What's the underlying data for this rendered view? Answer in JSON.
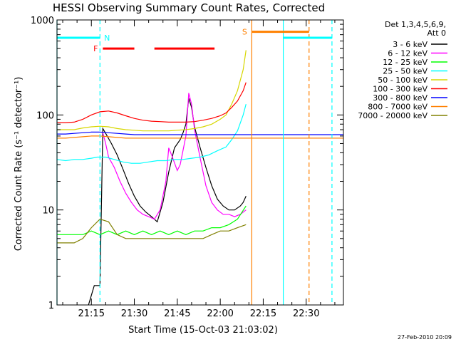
{
  "chart_data": {
    "type": "line",
    "title": "HESSI Observing Summary Count Rates, Corrected",
    "xlabel": "Start Time (15-Oct-03 21:03:02)",
    "ylabel": "Corrected Count Rate (s⁻¹ detector⁻¹)",
    "x_scale": "time",
    "x_range": [
      "21:03",
      "22:43"
    ],
    "x_ticks": [
      "21:15",
      "21:30",
      "21:45",
      "22:00",
      "22:15",
      "22:30"
    ],
    "y_scale": "log",
    "ylim": [
      1,
      1000
    ],
    "y_ticks": [
      "1",
      "10",
      "100",
      "1000"
    ],
    "legend": {
      "header_lines": [
        "Det 1,3,4,5,6,9,",
        "Att 0"
      ],
      "placement": "outside-right"
    },
    "series": [
      {
        "name": "3 - 6 keV",
        "color": "#000000",
        "points": [
          [
            "21:14",
            1.0
          ],
          [
            "21:16",
            1.6
          ],
          [
            "21:18",
            1.6
          ],
          [
            "21:19",
            72
          ],
          [
            "21:20",
            64
          ],
          [
            "21:22",
            50
          ],
          [
            "21:24",
            38
          ],
          [
            "21:26",
            27
          ],
          [
            "21:28",
            19
          ],
          [
            "21:30",
            14
          ],
          [
            "21:32",
            11
          ],
          [
            "21:34",
            9.5
          ],
          [
            "21:36",
            8.5
          ],
          [
            "21:38",
            7.5
          ],
          [
            "21:40",
            12
          ],
          [
            "21:42",
            25
          ],
          [
            "21:44",
            45
          ],
          [
            "21:46",
            55
          ],
          [
            "21:47",
            65
          ],
          [
            "21:48",
            80
          ],
          [
            "21:49",
            150
          ],
          [
            "21:50",
            120
          ],
          [
            "21:51",
            75
          ],
          [
            "21:53",
            45
          ],
          [
            "21:55",
            28
          ],
          [
            "21:57",
            18
          ],
          [
            "21:59",
            13
          ],
          [
            "22:01",
            11
          ],
          [
            "22:03",
            10
          ],
          [
            "22:05",
            10
          ],
          [
            "22:07",
            11
          ],
          [
            "22:08",
            12
          ],
          [
            "22:09",
            14
          ]
        ]
      },
      {
        "name": "6 - 12 keV",
        "color": "#ff00ff",
        "points": [
          [
            "21:19",
            65
          ],
          [
            "21:20",
            50
          ],
          [
            "21:21",
            36
          ],
          [
            "21:23",
            28
          ],
          [
            "21:25",
            20
          ],
          [
            "21:27",
            15
          ],
          [
            "21:29",
            12
          ],
          [
            "21:31",
            10
          ],
          [
            "21:33",
            9
          ],
          [
            "21:35",
            8.5
          ],
          [
            "21:37",
            8
          ],
          [
            "21:39",
            10
          ],
          [
            "21:41",
            20
          ],
          [
            "21:42",
            45
          ],
          [
            "21:43",
            38
          ],
          [
            "21:45",
            26
          ],
          [
            "21:46",
            30
          ],
          [
            "21:48",
            60
          ],
          [
            "21:49",
            170
          ],
          [
            "21:50",
            130
          ],
          [
            "21:51",
            70
          ],
          [
            "21:53",
            35
          ],
          [
            "21:55",
            18
          ],
          [
            "21:57",
            12
          ],
          [
            "21:59",
            10
          ],
          [
            "22:01",
            9
          ],
          [
            "22:03",
            9
          ],
          [
            "22:05",
            8.5
          ],
          [
            "22:07",
            9
          ],
          [
            "22:09",
            10
          ]
        ]
      },
      {
        "name": "12 - 25 keV",
        "color": "#00ff00",
        "points": [
          [
            "21:03",
            5.5
          ],
          [
            "21:06",
            5.5
          ],
          [
            "21:09",
            5.5
          ],
          [
            "21:12",
            5.5
          ],
          [
            "21:15",
            6.0
          ],
          [
            "21:18",
            5.5
          ],
          [
            "21:21",
            6.0
          ],
          [
            "21:24",
            5.5
          ],
          [
            "21:27",
            6.0
          ],
          [
            "21:30",
            5.5
          ],
          [
            "21:33",
            6.0
          ],
          [
            "21:36",
            5.5
          ],
          [
            "21:39",
            6.0
          ],
          [
            "21:42",
            5.5
          ],
          [
            "21:45",
            6.0
          ],
          [
            "21:48",
            5.5
          ],
          [
            "21:51",
            6.0
          ],
          [
            "21:54",
            6.0
          ],
          [
            "21:57",
            6.5
          ],
          [
            "22:00",
            6.5
          ],
          [
            "22:03",
            7.0
          ],
          [
            "22:06",
            8.0
          ],
          [
            "22:09",
            11
          ]
        ]
      },
      {
        "name": "25 - 50 keV",
        "color": "#00ffff",
        "points": [
          [
            "21:03",
            34
          ],
          [
            "21:06",
            33
          ],
          [
            "21:09",
            34
          ],
          [
            "21:12",
            34
          ],
          [
            "21:15",
            35
          ],
          [
            "21:17",
            36
          ],
          [
            "21:20",
            36
          ],
          [
            "21:23",
            34
          ],
          [
            "21:26",
            32
          ],
          [
            "21:29",
            31
          ],
          [
            "21:32",
            31
          ],
          [
            "21:35",
            32
          ],
          [
            "21:38",
            33
          ],
          [
            "21:41",
            33
          ],
          [
            "21:44",
            34
          ],
          [
            "21:47",
            34
          ],
          [
            "21:50",
            35
          ],
          [
            "21:53",
            36
          ],
          [
            "21:56",
            38
          ],
          [
            "21:59",
            42
          ],
          [
            "22:02",
            46
          ],
          [
            "22:04",
            55
          ],
          [
            "22:06",
            68
          ],
          [
            "22:08",
            100
          ],
          [
            "22:09",
            130
          ]
        ]
      },
      {
        "name": "50 - 100 keV",
        "color": "#d7d700",
        "points": [
          [
            "21:03",
            70
          ],
          [
            "21:06",
            70
          ],
          [
            "21:09",
            70
          ],
          [
            "21:12",
            73
          ],
          [
            "21:15",
            75
          ],
          [
            "21:18",
            76
          ],
          [
            "21:21",
            75
          ],
          [
            "21:24",
            72
          ],
          [
            "21:27",
            70
          ],
          [
            "21:30",
            69
          ],
          [
            "21:33",
            68
          ],
          [
            "21:36",
            68
          ],
          [
            "21:39",
            68
          ],
          [
            "21:42",
            68
          ],
          [
            "21:45",
            69
          ],
          [
            "21:48",
            70
          ],
          [
            "21:51",
            72
          ],
          [
            "21:54",
            75
          ],
          [
            "21:57",
            80
          ],
          [
            "22:00",
            90
          ],
          [
            "22:02",
            100
          ],
          [
            "22:04",
            130
          ],
          [
            "22:06",
            180
          ],
          [
            "22:08",
            300
          ],
          [
            "22:09",
            480
          ]
        ]
      },
      {
        "name": "100 - 300 keV",
        "color": "#ff0000",
        "points": [
          [
            "21:03",
            83
          ],
          [
            "21:06",
            83
          ],
          [
            "21:09",
            84
          ],
          [
            "21:12",
            90
          ],
          [
            "21:15",
            100
          ],
          [
            "21:18",
            108
          ],
          [
            "21:21",
            110
          ],
          [
            "21:24",
            105
          ],
          [
            "21:27",
            98
          ],
          [
            "21:30",
            92
          ],
          [
            "21:33",
            88
          ],
          [
            "21:36",
            86
          ],
          [
            "21:39",
            85
          ],
          [
            "21:42",
            84
          ],
          [
            "21:45",
            84
          ],
          [
            "21:48",
            84
          ],
          [
            "21:51",
            85
          ],
          [
            "21:54",
            88
          ],
          [
            "21:57",
            92
          ],
          [
            "22:00",
            98
          ],
          [
            "22:02",
            105
          ],
          [
            "22:04",
            120
          ],
          [
            "22:06",
            140
          ],
          [
            "22:08",
            180
          ],
          [
            "22:09",
            220
          ]
        ]
      },
      {
        "name": "300 - 800 keV",
        "color": "#0000ff",
        "points": [
          [
            "21:03",
            63
          ],
          [
            "21:06",
            63
          ],
          [
            "21:09",
            64
          ],
          [
            "21:12",
            65
          ],
          [
            "21:15",
            66
          ],
          [
            "21:18",
            66
          ],
          [
            "21:21",
            65
          ],
          [
            "21:24",
            64
          ],
          [
            "21:27",
            63
          ],
          [
            "21:30",
            62
          ],
          [
            "21:33",
            62
          ],
          [
            "21:36",
            62
          ],
          [
            "21:39",
            62
          ],
          [
            "21:42",
            62
          ],
          [
            "21:45",
            62
          ],
          [
            "21:48",
            62
          ],
          [
            "21:51",
            62
          ],
          [
            "21:54",
            62
          ],
          [
            "21:57",
            62
          ],
          [
            "22:00",
            62
          ],
          [
            "22:03",
            62
          ],
          [
            "22:06",
            62
          ],
          [
            "22:09",
            62
          ],
          [
            "22:43",
            62
          ]
        ]
      },
      {
        "name": "800 - 7000 keV",
        "color": "#ff8000",
        "points": [
          [
            "21:03",
            57
          ],
          [
            "21:06",
            57
          ],
          [
            "21:09",
            58
          ],
          [
            "21:12",
            59
          ],
          [
            "21:15",
            60
          ],
          [
            "21:18",
            60
          ],
          [
            "21:21",
            59
          ],
          [
            "21:24",
            58
          ],
          [
            "21:27",
            57
          ],
          [
            "21:30",
            57
          ],
          [
            "21:33",
            57
          ],
          [
            "21:36",
            57
          ],
          [
            "21:39",
            57
          ],
          [
            "21:42",
            57
          ],
          [
            "21:45",
            57
          ],
          [
            "21:48",
            57
          ],
          [
            "21:51",
            57
          ],
          [
            "21:54",
            57
          ],
          [
            "21:57",
            57
          ],
          [
            "22:00",
            57
          ],
          [
            "22:03",
            57
          ],
          [
            "22:06",
            57
          ],
          [
            "22:09",
            57
          ],
          [
            "22:43",
            57
          ]
        ]
      },
      {
        "name": "7000 - 20000 keV",
        "color": "#808000",
        "points": [
          [
            "21:03",
            4.5
          ],
          [
            "21:06",
            4.5
          ],
          [
            "21:09",
            4.5
          ],
          [
            "21:12",
            5.0
          ],
          [
            "21:15",
            6.5
          ],
          [
            "21:18",
            8.0
          ],
          [
            "21:21",
            7.5
          ],
          [
            "21:24",
            5.5
          ],
          [
            "21:27",
            5.0
          ],
          [
            "21:30",
            5.0
          ],
          [
            "21:33",
            5.0
          ],
          [
            "21:36",
            5.0
          ],
          [
            "21:39",
            5.0
          ],
          [
            "21:42",
            5.0
          ],
          [
            "21:45",
            5.0
          ],
          [
            "21:48",
            5.0
          ],
          [
            "21:51",
            5.0
          ],
          [
            "21:54",
            5.0
          ],
          [
            "21:57",
            5.5
          ],
          [
            "22:00",
            6.0
          ],
          [
            "22:03",
            6.0
          ],
          [
            "22:06",
            6.5
          ],
          [
            "22:09",
            7.0
          ]
        ]
      }
    ],
    "annotations": {
      "flags": [
        {
          "label": "N",
          "color": "#00ffff",
          "y": 650,
          "intervals": [
            [
              "21:03",
              "21:18"
            ],
            [
              "22:22",
              "22:39"
            ]
          ]
        },
        {
          "label": "F",
          "color": "#ff0000",
          "y": 500,
          "intervals": [
            [
              "21:19",
              "21:30"
            ],
            [
              "21:37",
              "21:58"
            ]
          ]
        },
        {
          "label": "S",
          "color": "#ff8000",
          "y": 750,
          "intervals": [
            [
              "22:11",
              "22:31"
            ]
          ]
        }
      ],
      "vlines": [
        {
          "time": "21:03",
          "color": "#00ffff",
          "dashed": false
        },
        {
          "time": "21:18",
          "color": "#00ffff",
          "dashed": true
        },
        {
          "time": "22:11",
          "color": "#ff8000",
          "dashed": false
        },
        {
          "time": "22:22",
          "color": "#00ffff",
          "dashed": false
        },
        {
          "time": "22:31",
          "color": "#ff8000",
          "dashed": true
        },
        {
          "time": "22:39",
          "color": "#00ffff",
          "dashed": true
        }
      ]
    }
  },
  "footer": {
    "timestamp": "27-Feb-2010 20:09"
  }
}
